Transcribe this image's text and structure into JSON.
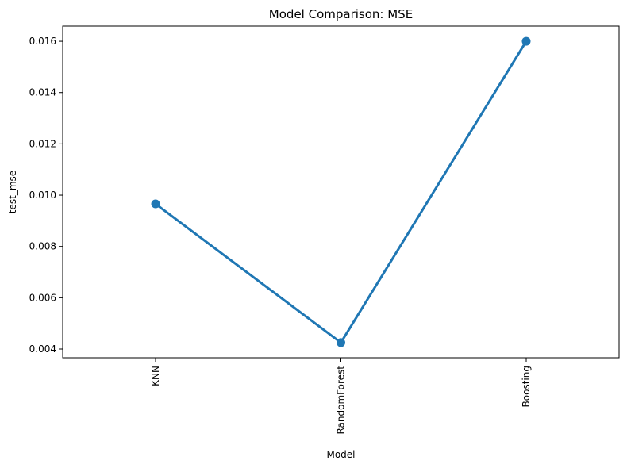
{
  "chart_data": {
    "type": "line",
    "title": "Model Comparison: MSE",
    "xlabel": "Model",
    "ylabel": "test_mse",
    "categories": [
      "KNN",
      "RandomForest",
      "Boosting"
    ],
    "series": [
      {
        "values": [
          0.00966,
          0.00425,
          0.016
        ],
        "color": "#1f77b4"
      }
    ],
    "yticks": [
      "0.004",
      "0.006",
      "0.008",
      "0.010",
      "0.012",
      "0.014",
      "0.016"
    ],
    "ytick_values": [
      0.004,
      0.006,
      0.008,
      0.01,
      0.012,
      0.014,
      0.016
    ],
    "ylim": [
      0.00366,
      0.01659
    ],
    "x_tick_rotation": "vertical",
    "grid": false,
    "legend": "none"
  }
}
